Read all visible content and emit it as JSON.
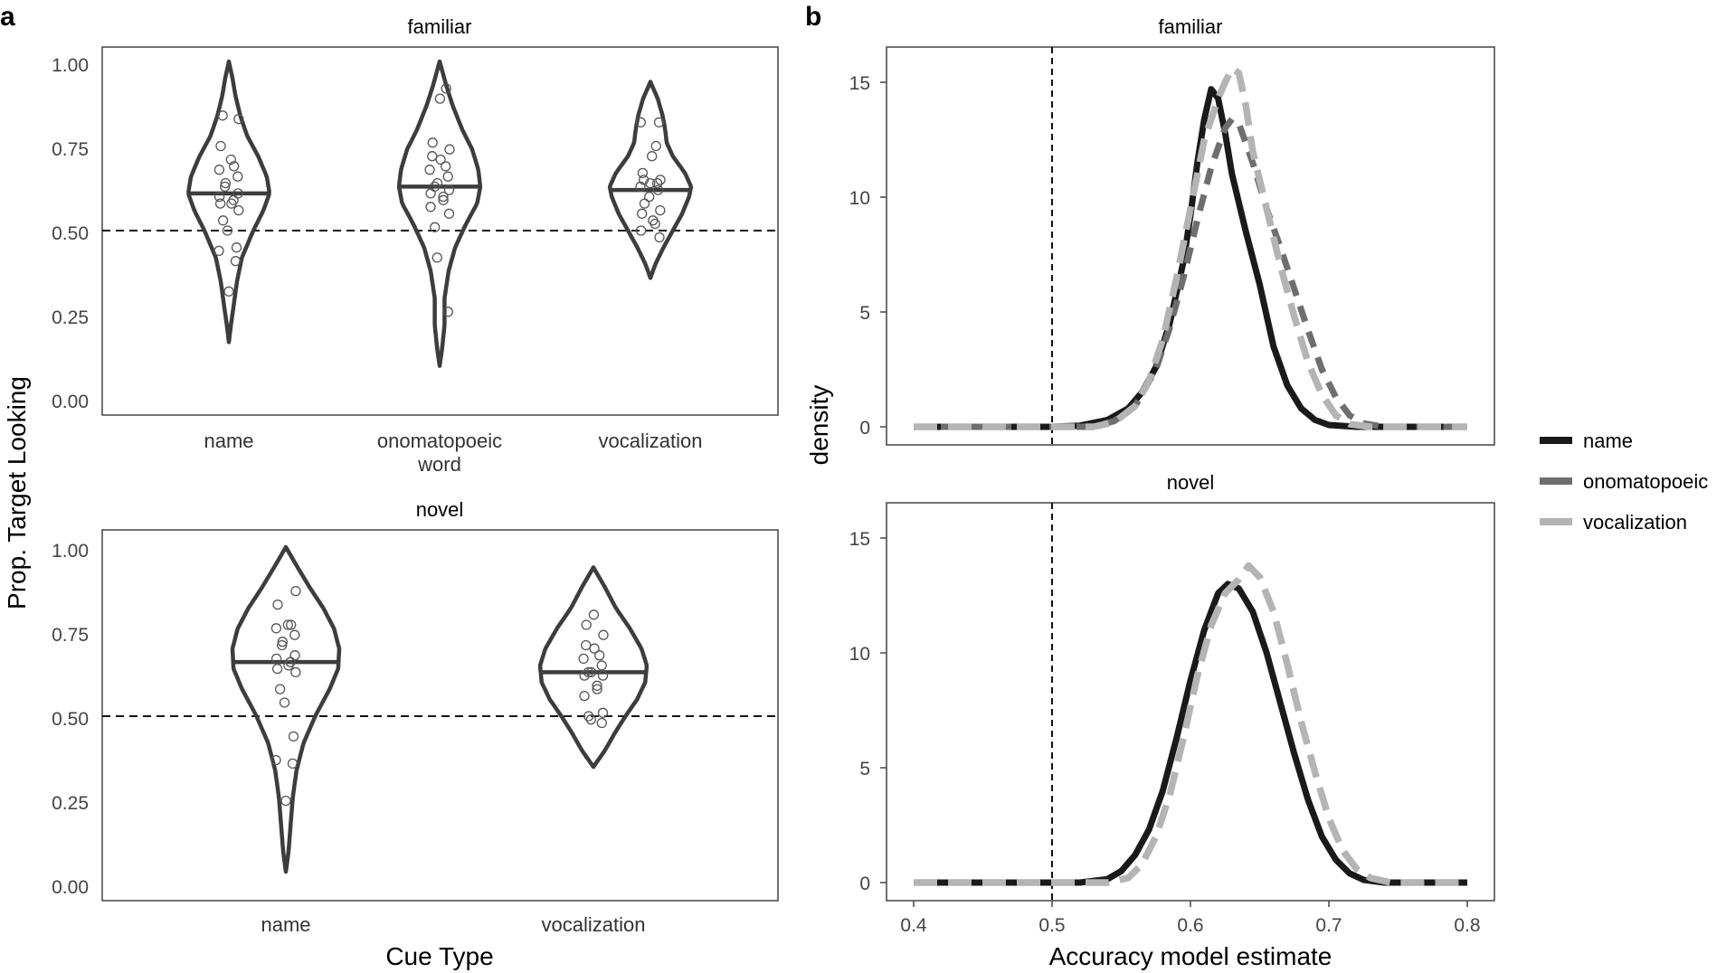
{
  "panel_labels": {
    "a": "a",
    "b": "b"
  },
  "colors": {
    "violin": "#3d3d3d",
    "name": "#1a1a1a",
    "onomatopoeic": "#6e6e6e",
    "vocalization": "#b4b4b4",
    "points": "#555555"
  },
  "legend": [
    {
      "key": "name",
      "label": "name"
    },
    {
      "key": "onomatopoeic",
      "label": "onomatopoeic"
    },
    {
      "key": "vocalization",
      "label": "vocalization"
    }
  ],
  "chart_data": [
    {
      "type": "violin",
      "title": "familiar",
      "ylabel": "Prop. Target Looking",
      "ylim": [
        0,
        1
      ],
      "yticks": [
        "0.00",
        "0.25",
        "0.50",
        "0.75",
        "1.00"
      ],
      "reference_line": 0.5,
      "categories": [
        "name",
        "onomatopoeic word",
        "vocalization"
      ],
      "groups": [
        {
          "label": "name",
          "median": 0.61,
          "range": [
            0.17,
            1.0
          ],
          "profile": [
            [
              0.17,
              0.0
            ],
            [
              0.22,
              0.05
            ],
            [
              0.28,
              0.12
            ],
            [
              0.35,
              0.2
            ],
            [
              0.42,
              0.32
            ],
            [
              0.5,
              0.6
            ],
            [
              0.56,
              0.85
            ],
            [
              0.61,
              1.0
            ],
            [
              0.66,
              0.93
            ],
            [
              0.72,
              0.72
            ],
            [
              0.78,
              0.45
            ],
            [
              0.84,
              0.28
            ],
            [
              0.9,
              0.16
            ],
            [
              0.95,
              0.09
            ],
            [
              1.0,
              0.0
            ]
          ],
          "points": [
            0.32,
            0.41,
            0.44,
            0.45,
            0.5,
            0.53,
            0.56,
            0.58,
            0.58,
            0.59,
            0.6,
            0.61,
            0.63,
            0.64,
            0.66,
            0.68,
            0.69,
            0.71,
            0.75,
            0.83,
            0.84
          ]
        },
        {
          "label": "onomatopoeic word",
          "median": 0.63,
          "range": [
            0.1,
            1.0
          ],
          "profile": [
            [
              0.1,
              0.0
            ],
            [
              0.15,
              0.06
            ],
            [
              0.22,
              0.12
            ],
            [
              0.3,
              0.12
            ],
            [
              0.38,
              0.22
            ],
            [
              0.45,
              0.38
            ],
            [
              0.52,
              0.65
            ],
            [
              0.58,
              0.92
            ],
            [
              0.63,
              1.0
            ],
            [
              0.68,
              0.95
            ],
            [
              0.74,
              0.8
            ],
            [
              0.8,
              0.55
            ],
            [
              0.87,
              0.32
            ],
            [
              0.93,
              0.16
            ],
            [
              1.0,
              0.0
            ]
          ],
          "points": [
            0.26,
            0.42,
            0.51,
            0.55,
            0.57,
            0.59,
            0.6,
            0.61,
            0.62,
            0.63,
            0.64,
            0.66,
            0.68,
            0.69,
            0.71,
            0.72,
            0.74,
            0.76,
            0.89,
            0.92
          ]
        },
        {
          "label": "vocalization",
          "median": 0.62,
          "range": [
            0.36,
            0.94
          ],
          "profile": [
            [
              0.36,
              0.0
            ],
            [
              0.4,
              0.12
            ],
            [
              0.45,
              0.32
            ],
            [
              0.5,
              0.55
            ],
            [
              0.55,
              0.78
            ],
            [
              0.6,
              0.95
            ],
            [
              0.63,
              1.0
            ],
            [
              0.67,
              0.85
            ],
            [
              0.72,
              0.55
            ],
            [
              0.76,
              0.4
            ],
            [
              0.8,
              0.36
            ],
            [
              0.84,
              0.3
            ],
            [
              0.89,
              0.18
            ],
            [
              0.94,
              0.0
            ]
          ],
          "points": [
            0.48,
            0.5,
            0.52,
            0.53,
            0.55,
            0.56,
            0.58,
            0.6,
            0.62,
            0.63,
            0.64,
            0.64,
            0.65,
            0.65,
            0.67,
            0.72,
            0.75,
            0.82,
            0.82
          ]
        }
      ]
    },
    {
      "type": "violin",
      "title": "novel",
      "xlabel": "Cue Type",
      "ylabel": "Prop. Target Looking",
      "ylim": [
        0,
        1
      ],
      "yticks": [
        "0.00",
        "0.25",
        "0.50",
        "0.75",
        "1.00"
      ],
      "reference_line": 0.5,
      "categories": [
        "name",
        "vocalization"
      ],
      "groups": [
        {
          "label": "name",
          "median": 0.66,
          "range": [
            0.04,
            1.0
          ],
          "profile": [
            [
              0.04,
              0.0
            ],
            [
              0.1,
              0.05
            ],
            [
              0.18,
              0.09
            ],
            [
              0.26,
              0.13
            ],
            [
              0.34,
              0.2
            ],
            [
              0.42,
              0.33
            ],
            [
              0.5,
              0.55
            ],
            [
              0.58,
              0.82
            ],
            [
              0.64,
              0.98
            ],
            [
              0.7,
              1.0
            ],
            [
              0.76,
              0.9
            ],
            [
              0.82,
              0.7
            ],
            [
              0.88,
              0.45
            ],
            [
              0.94,
              0.22
            ],
            [
              1.0,
              0.0
            ]
          ],
          "points": [
            0.25,
            0.36,
            0.37,
            0.44,
            0.54,
            0.58,
            0.63,
            0.64,
            0.65,
            0.66,
            0.67,
            0.68,
            0.71,
            0.72,
            0.74,
            0.76,
            0.77,
            0.77,
            0.83,
            0.87
          ]
        },
        {
          "label": "vocalization",
          "median": 0.63,
          "range": [
            0.35,
            0.94
          ],
          "profile": [
            [
              0.35,
              0.0
            ],
            [
              0.4,
              0.22
            ],
            [
              0.45,
              0.4
            ],
            [
              0.5,
              0.6
            ],
            [
              0.55,
              0.82
            ],
            [
              0.6,
              0.97
            ],
            [
              0.65,
              1.0
            ],
            [
              0.7,
              0.9
            ],
            [
              0.76,
              0.68
            ],
            [
              0.82,
              0.42
            ],
            [
              0.88,
              0.22
            ],
            [
              0.94,
              0.0
            ]
          ],
          "points": [
            0.48,
            0.49,
            0.5,
            0.51,
            0.56,
            0.58,
            0.59,
            0.62,
            0.62,
            0.63,
            0.63,
            0.65,
            0.67,
            0.68,
            0.7,
            0.71,
            0.74,
            0.77,
            0.8
          ]
        }
      ]
    },
    {
      "type": "line",
      "title": "familiar",
      "ylabel": "density",
      "xlim": [
        0.4,
        0.8
      ],
      "ylim": [
        0,
        16.2
      ],
      "yticks": [
        "0",
        "5",
        "10",
        "15"
      ],
      "reference_line": 0.5,
      "series": [
        {
          "name": "name",
          "points": [
            [
              0.4,
              0
            ],
            [
              0.5,
              0
            ],
            [
              0.52,
              0.05
            ],
            [
              0.54,
              0.3
            ],
            [
              0.555,
              0.8
            ],
            [
              0.565,
              1.5
            ],
            [
              0.575,
              2.6
            ],
            [
              0.585,
              4.5
            ],
            [
              0.595,
              7.2
            ],
            [
              0.6,
              9.2
            ],
            [
              0.605,
              11.5
            ],
            [
              0.61,
              13.4
            ],
            [
              0.615,
              14.7
            ],
            [
              0.62,
              14.3
            ],
            [
              0.625,
              12.8
            ],
            [
              0.63,
              11.0
            ],
            [
              0.64,
              8.5
            ],
            [
              0.65,
              6.2
            ],
            [
              0.66,
              3.5
            ],
            [
              0.67,
              1.8
            ],
            [
              0.68,
              0.8
            ],
            [
              0.69,
              0.3
            ],
            [
              0.7,
              0.08
            ],
            [
              0.72,
              0
            ],
            [
              0.8,
              0
            ]
          ]
        },
        {
          "name": "onomatopoeic",
          "points": [
            [
              0.4,
              0
            ],
            [
              0.53,
              0
            ],
            [
              0.545,
              0.25
            ],
            [
              0.56,
              0.9
            ],
            [
              0.575,
              2.5
            ],
            [
              0.585,
              4.3
            ],
            [
              0.595,
              6.5
            ],
            [
              0.605,
              9.0
            ],
            [
              0.615,
              11.3
            ],
            [
              0.625,
              13.0
            ],
            [
              0.63,
              13.4
            ],
            [
              0.635,
              13.2
            ],
            [
              0.645,
              11.5
            ],
            [
              0.655,
              9.5
            ],
            [
              0.665,
              7.8
            ],
            [
              0.675,
              6.0
            ],
            [
              0.685,
              4.2
            ],
            [
              0.695,
              2.5
            ],
            [
              0.705,
              1.3
            ],
            [
              0.715,
              0.5
            ],
            [
              0.725,
              0.15
            ],
            [
              0.74,
              0
            ],
            [
              0.8,
              0
            ]
          ]
        },
        {
          "name": "vocalization",
          "points": [
            [
              0.4,
              0
            ],
            [
              0.53,
              0
            ],
            [
              0.545,
              0.2
            ],
            [
              0.56,
              0.9
            ],
            [
              0.57,
              2.0
            ],
            [
              0.58,
              3.8
            ],
            [
              0.59,
              6.5
            ],
            [
              0.6,
              9.5
            ],
            [
              0.61,
              12.5
            ],
            [
              0.62,
              14.3
            ],
            [
              0.625,
              15.0
            ],
            [
              0.63,
              15.6
            ],
            [
              0.635,
              15.4
            ],
            [
              0.64,
              14.0
            ],
            [
              0.645,
              12.0
            ],
            [
              0.655,
              9.5
            ],
            [
              0.665,
              7.0
            ],
            [
              0.675,
              4.8
            ],
            [
              0.685,
              2.8
            ],
            [
              0.695,
              1.4
            ],
            [
              0.705,
              0.5
            ],
            [
              0.715,
              0.12
            ],
            [
              0.73,
              0
            ],
            [
              0.8,
              0
            ]
          ]
        }
      ]
    },
    {
      "type": "line",
      "title": "novel",
      "xlabel": "Accuracy model estimate",
      "ylabel": "density",
      "xlim": [
        0.4,
        0.8
      ],
      "ylim": [
        0,
        16.2
      ],
      "xticks": [
        "0.4",
        "0.5",
        "0.6",
        "0.7",
        "0.8"
      ],
      "yticks": [
        "0",
        "5",
        "10",
        "15"
      ],
      "reference_line": 0.5,
      "series": [
        {
          "name": "name",
          "points": [
            [
              0.4,
              0
            ],
            [
              0.52,
              0
            ],
            [
              0.54,
              0.15
            ],
            [
              0.55,
              0.5
            ],
            [
              0.56,
              1.2
            ],
            [
              0.57,
              2.3
            ],
            [
              0.58,
              4.0
            ],
            [
              0.59,
              6.3
            ],
            [
              0.6,
              8.8
            ],
            [
              0.61,
              11.0
            ],
            [
              0.62,
              12.6
            ],
            [
              0.627,
              13.0
            ],
            [
              0.635,
              12.8
            ],
            [
              0.645,
              11.8
            ],
            [
              0.655,
              10.0
            ],
            [
              0.665,
              7.8
            ],
            [
              0.675,
              5.6
            ],
            [
              0.685,
              3.6
            ],
            [
              0.695,
              2.0
            ],
            [
              0.705,
              1.0
            ],
            [
              0.715,
              0.4
            ],
            [
              0.725,
              0.12
            ],
            [
              0.74,
              0
            ],
            [
              0.8,
              0
            ]
          ]
        },
        {
          "name": "vocalization",
          "points": [
            [
              0.4,
              0
            ],
            [
              0.54,
              0
            ],
            [
              0.555,
              0.2
            ],
            [
              0.565,
              0.8
            ],
            [
              0.575,
              2.0
            ],
            [
              0.585,
              3.8
            ],
            [
              0.595,
              6.3
            ],
            [
              0.605,
              9.0
            ],
            [
              0.615,
              11.2
            ],
            [
              0.625,
              12.6
            ],
            [
              0.635,
              13.2
            ],
            [
              0.642,
              13.8
            ],
            [
              0.65,
              13.3
            ],
            [
              0.66,
              11.8
            ],
            [
              0.67,
              9.5
            ],
            [
              0.68,
              7.0
            ],
            [
              0.69,
              4.8
            ],
            [
              0.7,
              2.8
            ],
            [
              0.71,
              1.4
            ],
            [
              0.72,
              0.6
            ],
            [
              0.73,
              0.2
            ],
            [
              0.745,
              0
            ],
            [
              0.8,
              0
            ]
          ]
        }
      ]
    }
  ]
}
